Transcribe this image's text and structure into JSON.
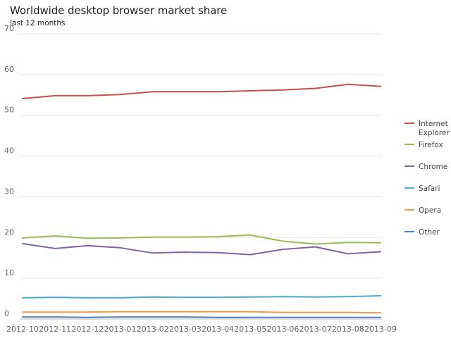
{
  "chart_data": {
    "type": "line",
    "title": "Worldwide desktop browser market share",
    "subtitle": "last 12 months",
    "xlabel": "",
    "ylabel": "",
    "x": [
      "2012-10",
      "2012-11",
      "2012-12",
      "2013-01",
      "2013-02",
      "2013-03",
      "2013-04",
      "2013-05",
      "2013-06",
      "2013-07",
      "2013-08",
      "2013-09"
    ],
    "ylim": [
      0,
      70
    ],
    "yticks": [
      0,
      10,
      20,
      30,
      40,
      50,
      60,
      70
    ],
    "grid": true,
    "legend_position": "right",
    "series": [
      {
        "name": "Internet Explorer",
        "legend_lines": [
          "Internet",
          "Explorer"
        ],
        "color": "#c9504f",
        "values": [
          54.1,
          54.8,
          54.8,
          55.1,
          55.8,
          55.8,
          55.8,
          56.0,
          56.2,
          56.6,
          57.6,
          57.1
        ]
      },
      {
        "name": "Firefox",
        "legend_lines": [
          "Firefox"
        ],
        "color": "#9bbb59",
        "values": [
          19.9,
          20.4,
          19.8,
          19.9,
          20.1,
          20.1,
          20.2,
          20.6,
          19.1,
          18.4,
          18.8,
          18.7
        ]
      },
      {
        "name": "Chrome",
        "legend_lines": [
          "Chrome"
        ],
        "color": "#8064a2",
        "values": [
          18.5,
          17.3,
          18.0,
          17.5,
          16.2,
          16.4,
          16.3,
          15.8,
          17.1,
          17.7,
          16.0,
          16.5
        ]
      },
      {
        "name": "Safari",
        "legend_lines": [
          "Safari"
        ],
        "color": "#4bacc6",
        "values": [
          5.2,
          5.3,
          5.2,
          5.2,
          5.4,
          5.3,
          5.3,
          5.4,
          5.5,
          5.4,
          5.5,
          5.7
        ]
      },
      {
        "name": "Opera",
        "legend_lines": [
          "Opera"
        ],
        "color": "#f79646",
        "values": [
          1.7,
          1.7,
          1.7,
          1.8,
          1.8,
          1.8,
          1.8,
          1.8,
          1.6,
          1.6,
          1.6,
          1.5
        ]
      },
      {
        "name": "Other",
        "legend_lines": [
          "Other"
        ],
        "color": "#4f81bd",
        "values": [
          0.5,
          0.5,
          0.4,
          0.5,
          0.5,
          0.5,
          0.4,
          0.4,
          0.4,
          0.4,
          0.4,
          0.4
        ]
      }
    ]
  }
}
